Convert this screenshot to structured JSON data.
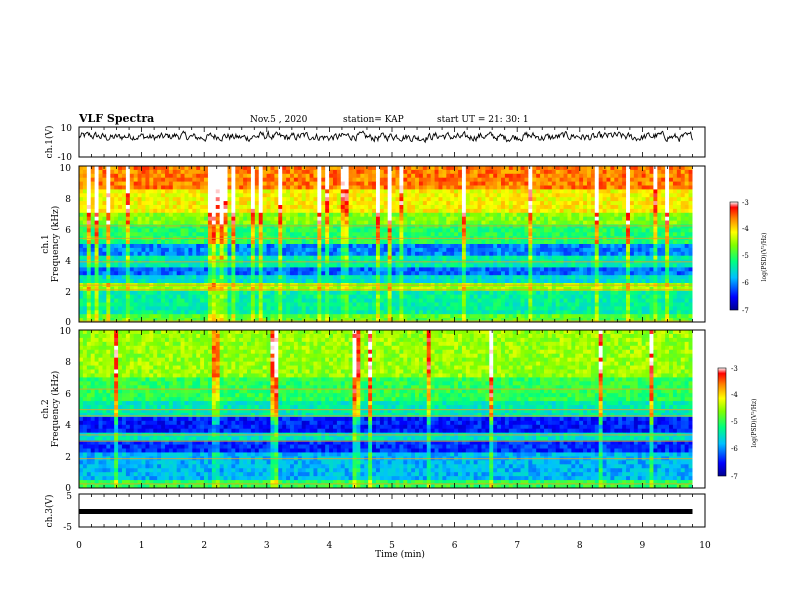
{
  "header": {
    "title": "VLF Spectra",
    "date": "Nov.5  , 2020",
    "station": "station= KAP",
    "start_ut": "start  UT  =   21: 30: 1"
  },
  "chart_data": [
    {
      "type": "line",
      "panel": "ch1-waveform",
      "ylabel": "ch.1(V)",
      "ylim": [
        -10,
        10
      ],
      "yticks": [
        "10",
        "-10"
      ],
      "xlim": [
        0,
        10
      ],
      "x_data_end": 9.8,
      "baseline": 3.5,
      "amplitude": 2.5,
      "color": "#000000"
    },
    {
      "type": "heatmap",
      "panel": "ch1-spectrogram",
      "ylabel": "ch.1\nFrequency  (kHz)",
      "ylim": [
        0,
        10
      ],
      "yticks": [
        "0",
        "2",
        "4",
        "6",
        "8",
        "10"
      ],
      "xlim": [
        0,
        10
      ],
      "x_data_end": 9.8,
      "band_levels": [
        {
          "f": [
            0,
            0.6
          ],
          "level": 0.55
        },
        {
          "f": [
            0.6,
            2.0
          ],
          "level": 0.42
        },
        {
          "f": [
            2.0,
            2.5
          ],
          "level": 0.62
        },
        {
          "f": [
            2.5,
            3.0
          ],
          "level": 0.36
        },
        {
          "f": [
            3.0,
            3.6
          ],
          "level": 0.22
        },
        {
          "f": [
            3.6,
            4.2
          ],
          "level": 0.4
        },
        {
          "f": [
            4.2,
            5.0
          ],
          "level": 0.24
        },
        {
          "f": [
            5.0,
            6.2
          ],
          "level": 0.48
        },
        {
          "f": [
            6.2,
            7.0
          ],
          "level": 0.6
        },
        {
          "f": [
            7.0,
            8.5
          ],
          "level": 0.72
        },
        {
          "f": [
            8.5,
            10
          ],
          "level": 0.85
        }
      ],
      "colorbar": {
        "label": "log(PSD)(V²/Hz)",
        "ticks": [
          "-3",
          "-4",
          "-5",
          "-6",
          "-7"
        ],
        "range": [
          -7,
          -3
        ]
      }
    },
    {
      "type": "heatmap",
      "panel": "ch2-spectrogram",
      "ylabel": "ch.2\nFrequency  (kHz)",
      "ylim": [
        0,
        10
      ],
      "yticks": [
        "0",
        "2",
        "4",
        "6",
        "8",
        "10"
      ],
      "xlim": [
        0,
        10
      ],
      "x_data_end": 9.8,
      "band_levels": [
        {
          "f": [
            0,
            0.4
          ],
          "level": 0.5
        },
        {
          "f": [
            0.4,
            2.2
          ],
          "level": 0.3
        },
        {
          "f": [
            2.2,
            3.0
          ],
          "level": 0.16
        },
        {
          "f": [
            3.0,
            3.6
          ],
          "level": 0.38
        },
        {
          "f": [
            3.6,
            4.6
          ],
          "level": 0.14
        },
        {
          "f": [
            4.6,
            5.4
          ],
          "level": 0.4
        },
        {
          "f": [
            5.4,
            7.0
          ],
          "level": 0.5
        },
        {
          "f": [
            7.0,
            10
          ],
          "level": 0.62
        }
      ],
      "colorbar": {
        "label": "log(PSD)(V²/Hz)",
        "ticks": [
          "-3",
          "-4",
          "-5",
          "-6",
          "-7"
        ],
        "range": [
          -7,
          -3
        ]
      }
    },
    {
      "type": "line",
      "panel": "ch3-waveform",
      "ylabel": "ch.3(V)",
      "ylim": [
        -5,
        5
      ],
      "yticks": [
        "5",
        "-5"
      ],
      "xlim": [
        0,
        10
      ],
      "x_data_end": 9.8,
      "baseline": 0,
      "color": "#000000",
      "xlabel": "Time  (min)",
      "xticks": [
        "0",
        "1",
        "2",
        "3",
        "4",
        "5",
        "6",
        "7",
        "8",
        "9",
        "10"
      ]
    }
  ]
}
